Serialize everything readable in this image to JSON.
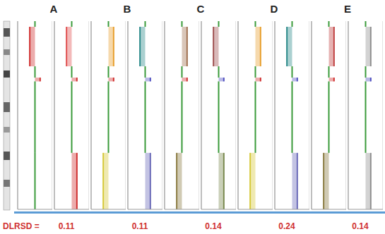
{
  "footer": {
    "label": "DLRSD ="
  },
  "chart_data": [
    {
      "type": "line",
      "title": "A",
      "dlrsd": 0.11,
      "orientation": "horizontal",
      "xlim": [
        -2,
        2
      ],
      "xticks": [
        -2,
        -1,
        0,
        1,
        2
      ],
      "ylim": [
        0,
        100
      ],
      "grid": true,
      "tick_labels": false,
      "tracks": [
        {
          "segments": [
            {
              "start": 0,
              "end": 30,
              "value": 0,
              "color": "#3a9a3a"
            },
            {
              "start": 30,
              "end": 68,
              "value": 0,
              "color": "#3a9a3a"
            },
            {
              "start": 68,
              "end": 70,
              "value": 0.6,
              "color": "#d03030"
            },
            {
              "start": 70,
              "end": 76,
              "value": 0,
              "color": "#3a9a3a"
            },
            {
              "start": 76,
              "end": 97,
              "value": -0.6,
              "color": "#d03030"
            },
            {
              "start": 97,
              "end": 100,
              "value": 0,
              "color": "#3a9a3a"
            }
          ]
        },
        {
          "segments": [
            {
              "start": 0,
              "end": 30,
              "value": 0.6,
              "color": "#d03030"
            },
            {
              "start": 30,
              "end": 68,
              "value": 0,
              "color": "#3a9a3a"
            },
            {
              "start": 68,
              "end": 70,
              "value": 0.6,
              "color": "#d03030"
            },
            {
              "start": 70,
              "end": 76,
              "value": 0,
              "color": "#3a9a3a"
            },
            {
              "start": 76,
              "end": 97,
              "value": -0.6,
              "color": "#e05050"
            },
            {
              "start": 97,
              "end": 100,
              "value": 0,
              "color": "#3a9a3a"
            }
          ]
        }
      ]
    },
    {
      "type": "line",
      "title": "B",
      "dlrsd": 0.11,
      "orientation": "horizontal",
      "xlim": [
        -2,
        2
      ],
      "xticks": [
        -2,
        -1,
        0,
        1,
        2
      ],
      "ylim": [
        0,
        100
      ],
      "grid": true,
      "tick_labels": false,
      "tracks": [
        {
          "segments": [
            {
              "start": 0,
              "end": 30,
              "value": -0.6,
              "color": "#d6c93a"
            },
            {
              "start": 30,
              "end": 68,
              "value": 0,
              "color": "#3a9a3a"
            },
            {
              "start": 68,
              "end": 70,
              "value": 0.6,
              "color": "#d03030"
            },
            {
              "start": 70,
              "end": 76,
              "value": 0,
              "color": "#3a9a3a"
            },
            {
              "start": 76,
              "end": 97,
              "value": 0.6,
              "color": "#e8a030"
            },
            {
              "start": 97,
              "end": 100,
              "value": 0,
              "color": "#3a9a3a"
            }
          ]
        },
        {
          "segments": [
            {
              "start": 0,
              "end": 30,
              "value": 0.6,
              "color": "#6a6ab8"
            },
            {
              "start": 30,
              "end": 68,
              "value": 0,
              "color": "#3a9a3a"
            },
            {
              "start": 68,
              "end": 70,
              "value": 0.6,
              "color": "#5050c0"
            },
            {
              "start": 70,
              "end": 76,
              "value": 0,
              "color": "#3a9a3a"
            },
            {
              "start": 76,
              "end": 97,
              "value": -0.6,
              "color": "#2a8a8a"
            },
            {
              "start": 97,
              "end": 100,
              "value": 0,
              "color": "#3a9a3a"
            }
          ]
        }
      ]
    },
    {
      "type": "line",
      "title": "C",
      "dlrsd": 0.14,
      "orientation": "horizontal",
      "xlim": [
        -2,
        2
      ],
      "xticks": [
        -2,
        -1,
        0,
        1,
        2
      ],
      "ylim": [
        0,
        100
      ],
      "grid": true,
      "tick_labels": false,
      "tracks": [
        {
          "segments": [
            {
              "start": 0,
              "end": 30,
              "value": -0.6,
              "color": "#8a7a40"
            },
            {
              "start": 30,
              "end": 68,
              "value": 0,
              "color": "#3a9a3a"
            },
            {
              "start": 68,
              "end": 70,
              "value": 0.6,
              "color": "#d03030"
            },
            {
              "start": 70,
              "end": 76,
              "value": 0,
              "color": "#3a9a3a"
            },
            {
              "start": 76,
              "end": 97,
              "value": 0.6,
              "color": "#a07050"
            },
            {
              "start": 97,
              "end": 100,
              "value": 0,
              "color": "#3a9a3a"
            }
          ]
        },
        {
          "segments": [
            {
              "start": 0,
              "end": 30,
              "value": 0.6,
              "color": "#7a8a50"
            },
            {
              "start": 30,
              "end": 68,
              "value": 0,
              "color": "#3a9a3a"
            },
            {
              "start": 68,
              "end": 70,
              "value": 0.6,
              "color": "#5050c0"
            },
            {
              "start": 70,
              "end": 76,
              "value": 0,
              "color": "#3a9a3a"
            },
            {
              "start": 76,
              "end": 97,
              "value": -0.6,
              "color": "#a05050"
            },
            {
              "start": 97,
              "end": 100,
              "value": 0,
              "color": "#3a9a3a"
            }
          ]
        }
      ]
    },
    {
      "type": "line",
      "title": "D",
      "dlrsd": 0.24,
      "orientation": "horizontal",
      "xlim": [
        -2,
        2
      ],
      "xticks": [
        -2,
        -1,
        0,
        1,
        2
      ],
      "ylim": [
        0,
        100
      ],
      "grid": true,
      "tick_labels": false,
      "tracks": [
        {
          "segments": [
            {
              "start": 0,
              "end": 30,
              "value": -0.6,
              "color": "#d6c93a"
            },
            {
              "start": 30,
              "end": 68,
              "value": 0,
              "color": "#3a9a3a"
            },
            {
              "start": 68,
              "end": 70,
              "value": 0.6,
              "color": "#d03030"
            },
            {
              "start": 70,
              "end": 76,
              "value": 0,
              "color": "#3a9a3a"
            },
            {
              "start": 76,
              "end": 97,
              "value": 0.6,
              "color": "#e8a030"
            },
            {
              "start": 97,
              "end": 100,
              "value": 0,
              "color": "#3a9a3a"
            }
          ]
        },
        {
          "segments": [
            {
              "start": 0,
              "end": 30,
              "value": 0.6,
              "color": "#6a6ab8"
            },
            {
              "start": 30,
              "end": 68,
              "value": 0,
              "color": "#3a9a3a"
            },
            {
              "start": 68,
              "end": 70,
              "value": 0.6,
              "color": "#5050c0"
            },
            {
              "start": 70,
              "end": 76,
              "value": 0,
              "color": "#3a9a3a"
            },
            {
              "start": 76,
              "end": 97,
              "value": -0.6,
              "color": "#2a8a8a"
            },
            {
              "start": 97,
              "end": 100,
              "value": 0,
              "color": "#3a9a3a"
            }
          ]
        }
      ]
    },
    {
      "type": "line",
      "title": "E",
      "dlrsd": 0.14,
      "orientation": "horizontal",
      "xlim": [
        -2,
        2
      ],
      "xticks": [
        -2,
        -1,
        0,
        1,
        2
      ],
      "ylim": [
        0,
        100
      ],
      "grid": true,
      "tick_labels": false,
      "tracks": [
        {
          "segments": [
            {
              "start": 0,
              "end": 30,
              "value": -0.6,
              "color": "#8a7a40"
            },
            {
              "start": 30,
              "end": 68,
              "value": 0,
              "color": "#3a9a3a"
            },
            {
              "start": 68,
              "end": 70,
              "value": 0.6,
              "color": "#d03030"
            },
            {
              "start": 70,
              "end": 76,
              "value": 0,
              "color": "#3a9a3a"
            },
            {
              "start": 76,
              "end": 97,
              "value": 0.6,
              "color": "#c04040"
            },
            {
              "start": 97,
              "end": 100,
              "value": 0,
              "color": "#3a9a3a"
            }
          ]
        },
        {
          "segments": [
            {
              "start": 0,
              "end": 30,
              "value": 0.6,
              "color": "#909090"
            },
            {
              "start": 30,
              "end": 68,
              "value": 0,
              "color": "#3a9a3a"
            },
            {
              "start": 68,
              "end": 70,
              "value": 0.6,
              "color": "#5050c0"
            },
            {
              "start": 70,
              "end": 76,
              "value": 0,
              "color": "#3a9a3a"
            },
            {
              "start": 76,
              "end": 97,
              "value": 0.6,
              "color": "#909090"
            },
            {
              "start": 97,
              "end": 100,
              "value": 0,
              "color": "#3a9a3a"
            }
          ]
        }
      ]
    }
  ]
}
